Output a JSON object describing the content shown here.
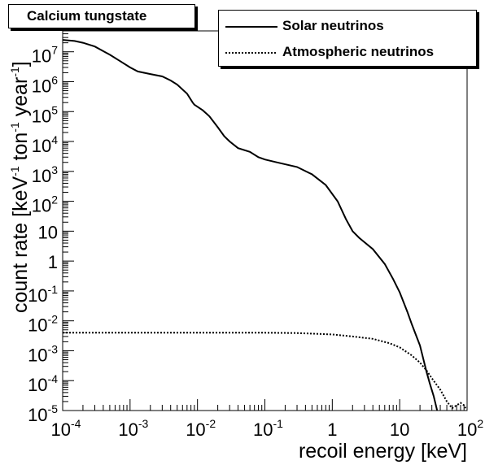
{
  "chart_data": {
    "type": "line",
    "title": "Calcium tungstate",
    "xlabel": "recoil energy [keV]",
    "ylabel_parts": {
      "pre": "count rate [keV",
      "exp1": "-1",
      "mid": " ton",
      "exp2": "-1",
      "post": " year",
      "exp3": "-1",
      "end": "]"
    },
    "x_scale": "log",
    "y_scale": "log",
    "xlim": [
      0.0001,
      100
    ],
    "ylim": [
      1e-05,
      50000000
    ],
    "x_ticks": [
      {
        "base": "10",
        "exp": "-4",
        "value": 0.0001
      },
      {
        "base": "10",
        "exp": "-3",
        "value": 0.001
      },
      {
        "base": "10",
        "exp": "-2",
        "value": 0.01
      },
      {
        "base": "10",
        "exp": "-1",
        "value": 0.1
      },
      {
        "base": "1",
        "exp": "",
        "value": 1
      },
      {
        "base": "10",
        "exp": "",
        "value": 10
      },
      {
        "base": "10",
        "exp": "2",
        "value": 100
      }
    ],
    "y_ticks": [
      {
        "base": "10",
        "exp": "-5",
        "value": 1e-05
      },
      {
        "base": "10",
        "exp": "-4",
        "value": 0.0001
      },
      {
        "base": "10",
        "exp": "-3",
        "value": 0.001
      },
      {
        "base": "10",
        "exp": "-2",
        "value": 0.01
      },
      {
        "base": "10",
        "exp": "-1",
        "value": 0.1
      },
      {
        "base": "1",
        "exp": "",
        "value": 1
      },
      {
        "base": "10",
        "exp": "",
        "value": 10
      },
      {
        "base": "10",
        "exp": "2",
        "value": 100
      },
      {
        "base": "10",
        "exp": "3",
        "value": 1000
      },
      {
        "base": "10",
        "exp": "4",
        "value": 10000
      },
      {
        "base": "10",
        "exp": "5",
        "value": 100000
      },
      {
        "base": "10",
        "exp": "6",
        "value": 1000000
      },
      {
        "base": "10",
        "exp": "7",
        "value": 10000000
      }
    ],
    "legend_position": "top-right",
    "series": [
      {
        "name": "Solar neutrinos",
        "style": "solid",
        "color": "#000000",
        "points": [
          [
            0.0001,
            25000000
          ],
          [
            0.00015,
            23000000
          ],
          [
            0.0002,
            20000000
          ],
          [
            0.0003,
            15000000
          ],
          [
            0.0005,
            8000000
          ],
          [
            0.0007,
            5000000
          ],
          [
            0.001,
            3000000
          ],
          [
            0.0013,
            2200000
          ],
          [
            0.002,
            1800000
          ],
          [
            0.003,
            1500000
          ],
          [
            0.004,
            1100000
          ],
          [
            0.005,
            800000
          ],
          [
            0.007,
            400000
          ],
          [
            0.0085,
            200000
          ],
          [
            0.009,
            170000
          ],
          [
            0.012,
            110000
          ],
          [
            0.015,
            70000
          ],
          [
            0.02,
            30000
          ],
          [
            0.025,
            15000
          ],
          [
            0.03,
            10000
          ],
          [
            0.04,
            6000
          ],
          [
            0.06,
            4500
          ],
          [
            0.08,
            3000
          ],
          [
            0.1,
            2500
          ],
          [
            0.15,
            2000
          ],
          [
            0.3,
            1400
          ],
          [
            0.5,
            800
          ],
          [
            0.8,
            350
          ],
          [
            1.2,
            100
          ],
          [
            1.6,
            25
          ],
          [
            2,
            10
          ],
          [
            2.5,
            6
          ],
          [
            4,
            2.5
          ],
          [
            6,
            0.8
          ],
          [
            8,
            0.25
          ],
          [
            10,
            0.09
          ],
          [
            13,
            0.02
          ],
          [
            15,
            0.008
          ],
          [
            20,
            0.0015
          ],
          [
            25,
            0.0002
          ],
          [
            28,
            8e-05
          ],
          [
            32,
            3e-05
          ],
          [
            36,
            1e-05
          ]
        ]
      },
      {
        "name": "Atmospheric neutrinos",
        "style": "dotted",
        "color": "#000000",
        "points": [
          [
            0.0001,
            0.004
          ],
          [
            0.001,
            0.004
          ],
          [
            0.01,
            0.004
          ],
          [
            0.1,
            0.004
          ],
          [
            0.3,
            0.0039
          ],
          [
            1,
            0.0035
          ],
          [
            2,
            0.003
          ],
          [
            4,
            0.0025
          ],
          [
            7,
            0.0018
          ],
          [
            10,
            0.0013
          ],
          [
            15,
            0.0007
          ],
          [
            20,
            0.0004
          ],
          [
            25,
            0.00022
          ],
          [
            30,
            0.00012
          ],
          [
            40,
            5e-05
          ],
          [
            50,
            2e-05
          ],
          [
            60,
            1.2e-05
          ],
          [
            70,
            1.5e-05
          ],
          [
            80,
            1.8e-05
          ],
          [
            90,
            1.5e-05
          ],
          [
            95,
            1.2e-05
          ]
        ]
      }
    ]
  }
}
